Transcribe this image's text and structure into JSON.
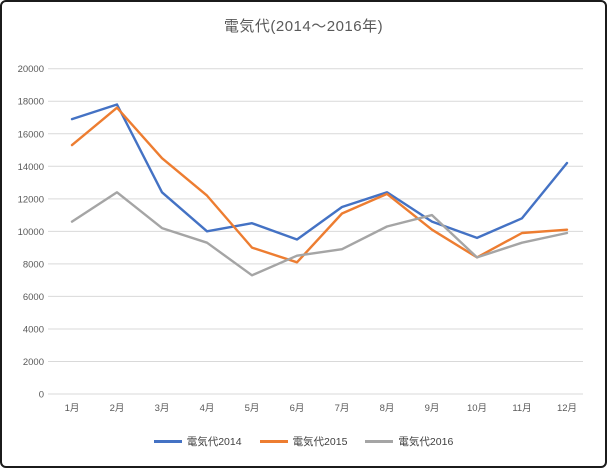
{
  "page": {
    "title": "電気代(2014〜2016年)"
  },
  "chart_data": {
    "type": "line",
    "title": "電気代(2014〜2016年)",
    "categories": [
      "1月",
      "2月",
      "3月",
      "4月",
      "5月",
      "6月",
      "7月",
      "8月",
      "9月",
      "10月",
      "11月",
      "12月"
    ],
    "series": [
      {
        "name": "電気代2014",
        "color": "#4472C4",
        "values": [
          16900,
          17800,
          12400,
          10000,
          10500,
          9500,
          11500,
          12400,
          10600,
          9600,
          10800,
          14200
        ]
      },
      {
        "name": "電気代2015",
        "color": "#ED7D31",
        "values": [
          15300,
          17600,
          14500,
          12200,
          9000,
          8100,
          11100,
          12300,
          10100,
          8400,
          9900,
          10100
        ]
      },
      {
        "name": "電気代2016",
        "color": "#A5A5A5",
        "values": [
          10600,
          12400,
          10200,
          9300,
          7300,
          8500,
          8900,
          10300,
          11000,
          8400,
          9300,
          9900
        ]
      }
    ],
    "ylim": [
      0,
      20000
    ],
    "ytick_step": 2000,
    "yticks": [
      0,
      2000,
      4000,
      6000,
      8000,
      10000,
      12000,
      14000,
      16000,
      18000,
      20000
    ],
    "xlabel": "",
    "ylabel": "",
    "grid": true,
    "legend_position": "bottom"
  },
  "style": {
    "grid_color": "#D9D9D9",
    "text_color": "#595959",
    "background": "#FFFFFF",
    "border_color": "#1B1B1B"
  }
}
